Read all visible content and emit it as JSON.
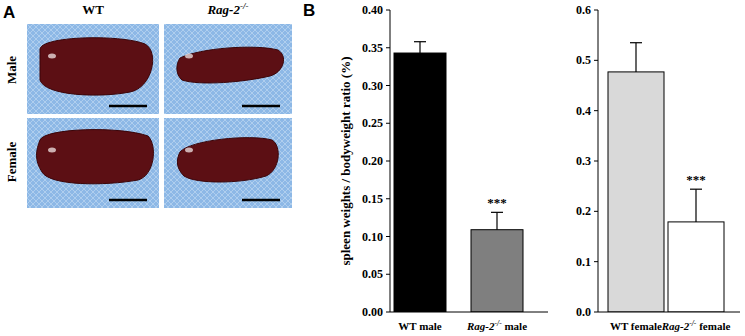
{
  "panel_a": {
    "label": "A",
    "columns": [
      "WT",
      "Rag-2-/-"
    ],
    "rows": [
      "Male",
      "Female"
    ]
  },
  "panel_b": {
    "label": "B"
  },
  "chart_data": [
    {
      "type": "bar",
      "y_label": "spleen weights / bodyweight ratio (%)",
      "categories": [
        "WT male",
        "Rag-2-/- male"
      ],
      "values": [
        0.343,
        0.109
      ],
      "errors": [
        0.015,
        0.023
      ],
      "significance": [
        null,
        "***"
      ],
      "colors": [
        "#000000",
        "#7f7f7f"
      ],
      "ylim": [
        0,
        0.4
      ],
      "yticks": [
        {
          "value": 0,
          "label": "0.00"
        },
        {
          "value": 0.05,
          "label": "0.05"
        },
        {
          "value": 0.1,
          "label": "0.10"
        },
        {
          "value": 0.15,
          "label": "0.15"
        },
        {
          "value": 0.2,
          "label": "0.20"
        },
        {
          "value": 0.25,
          "label": "0.25"
        },
        {
          "value": 0.3,
          "label": "0.30"
        },
        {
          "value": 0.35,
          "label": "0.35"
        },
        {
          "value": 0.4,
          "label": "0.40"
        }
      ]
    },
    {
      "type": "bar",
      "categories": [
        "WT female",
        "Rag-2-/- female"
      ],
      "values": [
        0.477,
        0.179
      ],
      "errors": [
        0.058,
        0.065
      ],
      "significance": [
        null,
        "***"
      ],
      "colors": [
        "#d9d9d9",
        "#ffffff"
      ],
      "ylim": [
        0,
        0.6
      ],
      "yticks": [
        {
          "value": 0,
          "label": "0.0"
        },
        {
          "value": 0.1,
          "label": "0.1"
        },
        {
          "value": 0.2,
          "label": "0.2"
        },
        {
          "value": 0.3,
          "label": "0.3"
        },
        {
          "value": 0.4,
          "label": "0.4"
        },
        {
          "value": 0.5,
          "label": "0.5"
        },
        {
          "value": 0.6,
          "label": "0.6"
        }
      ]
    }
  ]
}
